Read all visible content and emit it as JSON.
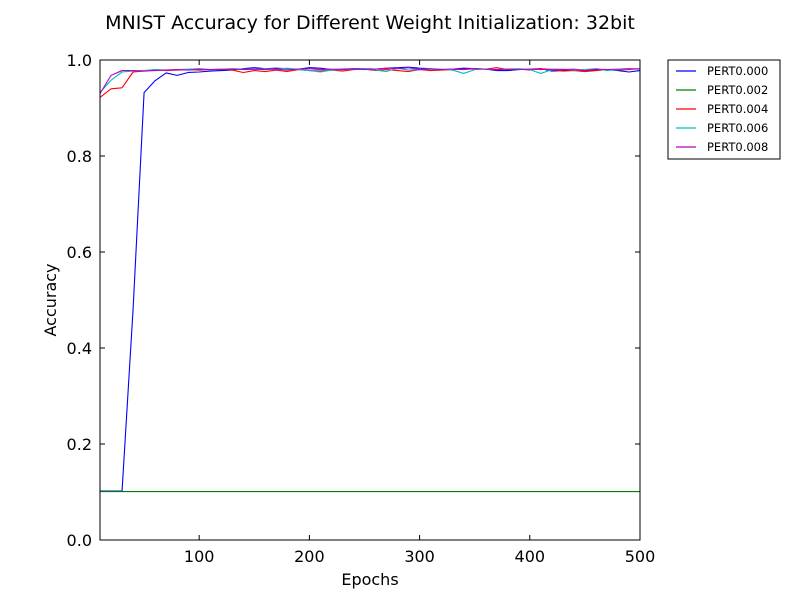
{
  "chart_data": {
    "type": "line",
    "title": "MNIST Accuracy for Different Weight Initialization: 32bit",
    "xlabel": "Epochs",
    "ylabel": "Accuracy",
    "xlim": [
      10,
      500
    ],
    "ylim": [
      0.0,
      1.0
    ],
    "xticks": [
      100,
      200,
      300,
      400,
      500
    ],
    "xtick_labels": [
      "100",
      "200",
      "300",
      "400",
      "500"
    ],
    "yticks": [
      0.0,
      0.2,
      0.4,
      0.6,
      0.8,
      1.0
    ],
    "ytick_labels": [
      "0.0",
      "0.2",
      "0.4",
      "0.6",
      "0.8",
      "1.0"
    ],
    "grid": false,
    "legend_position": "outside-top-right",
    "x": [
      10,
      20,
      30,
      40,
      50,
      60,
      70,
      80,
      90,
      100,
      110,
      120,
      130,
      140,
      150,
      160,
      170,
      180,
      190,
      200,
      210,
      220,
      230,
      240,
      250,
      260,
      270,
      280,
      290,
      300,
      310,
      320,
      330,
      340,
      350,
      360,
      370,
      380,
      390,
      400,
      410,
      420,
      430,
      440,
      450,
      460,
      470,
      480,
      490,
      500
    ],
    "series": [
      {
        "name": "PERT0.000",
        "color": "#0000ff",
        "values": [
          0.102,
          0.102,
          0.102,
          0.48,
          0.932,
          0.957,
          0.973,
          0.968,
          0.974,
          0.975,
          0.977,
          0.978,
          0.979,
          0.982,
          0.984,
          0.982,
          0.983,
          0.982,
          0.981,
          0.984,
          0.983,
          0.98,
          0.981,
          0.982,
          0.982,
          0.981,
          0.983,
          0.984,
          0.985,
          0.983,
          0.982,
          0.98,
          0.981,
          0.983,
          0.982,
          0.981,
          0.978,
          0.978,
          0.98,
          0.981,
          0.982,
          0.977,
          0.978,
          0.979,
          0.977,
          0.979,
          0.98,
          0.978,
          0.975,
          0.978
        ]
      },
      {
        "name": "PERT0.002",
        "color": "#008000",
        "values": [
          0.101,
          0.101,
          0.101,
          0.101,
          0.101,
          0.101,
          0.101,
          0.101,
          0.101,
          0.101,
          0.101,
          0.101,
          0.101,
          0.101,
          0.101,
          0.101,
          0.101,
          0.101,
          0.101,
          0.101,
          0.101,
          0.101,
          0.101,
          0.101,
          0.101,
          0.101,
          0.101,
          0.101,
          0.101,
          0.101,
          0.101,
          0.101,
          0.101,
          0.101,
          0.101,
          0.101,
          0.101,
          0.101,
          0.101,
          0.101,
          0.101,
          0.101,
          0.101,
          0.101,
          0.101,
          0.101,
          0.101,
          0.101,
          0.101,
          0.101
        ]
      },
      {
        "name": "PERT0.004",
        "color": "#ff0000",
        "values": [
          0.922,
          0.94,
          0.942,
          0.975,
          0.977,
          0.98,
          0.978,
          0.979,
          0.98,
          0.979,
          0.98,
          0.981,
          0.979,
          0.974,
          0.978,
          0.976,
          0.979,
          0.976,
          0.98,
          0.978,
          0.977,
          0.979,
          0.977,
          0.98,
          0.981,
          0.978,
          0.98,
          0.978,
          0.976,
          0.98,
          0.978,
          0.979,
          0.98,
          0.981,
          0.982,
          0.981,
          0.984,
          0.98,
          0.981,
          0.979,
          0.982,
          0.98,
          0.977,
          0.978,
          0.976,
          0.978,
          0.98,
          0.979,
          0.98,
          0.982
        ]
      },
      {
        "name": "PERT0.006",
        "color": "#00bfbf",
        "values": [
          0.932,
          0.958,
          0.975,
          0.977,
          0.978,
          0.98,
          0.979,
          0.98,
          0.981,
          0.982,
          0.98,
          0.981,
          0.982,
          0.981,
          0.98,
          0.982,
          0.981,
          0.983,
          0.98,
          0.978,
          0.975,
          0.979,
          0.98,
          0.981,
          0.982,
          0.979,
          0.976,
          0.983,
          0.979,
          0.98,
          0.982,
          0.981,
          0.979,
          0.972,
          0.98,
          0.981,
          0.98,
          0.981,
          0.982,
          0.98,
          0.972,
          0.98,
          0.981,
          0.979,
          0.98,
          0.982,
          0.978,
          0.98,
          0.981,
          0.982
        ]
      },
      {
        "name": "PERT0.008",
        "color": "#bf00bf",
        "values": [
          0.93,
          0.968,
          0.978,
          0.978,
          0.977,
          0.978,
          0.979,
          0.98,
          0.979,
          0.981,
          0.98,
          0.98,
          0.981,
          0.98,
          0.981,
          0.98,
          0.981,
          0.979,
          0.981,
          0.982,
          0.98,
          0.981,
          0.98,
          0.981,
          0.98,
          0.981,
          0.983,
          0.982,
          0.984,
          0.98,
          0.981,
          0.98,
          0.981,
          0.98,
          0.982,
          0.981,
          0.98,
          0.981,
          0.98,
          0.981,
          0.98,
          0.981,
          0.98,
          0.981,
          0.978,
          0.981,
          0.98,
          0.981,
          0.982,
          0.981
        ]
      }
    ]
  }
}
